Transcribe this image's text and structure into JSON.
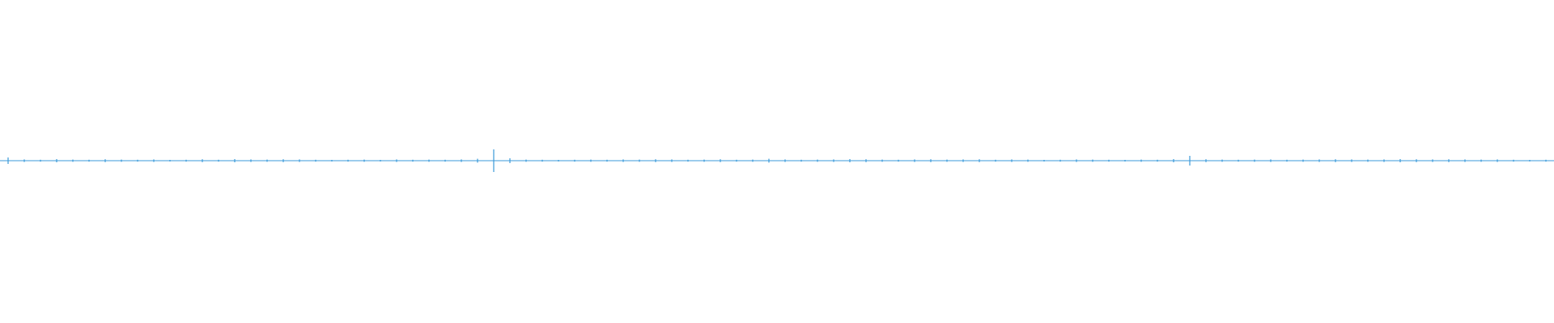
{
  "waveform": {
    "color": "#3a9ad9",
    "peaks": [
      0.02,
      0.008,
      0.006,
      0.01,
      0.007,
      0.006,
      0.009,
      0.007,
      0.006,
      0.008,
      0.005,
      0.006,
      0.009,
      0.006,
      0.01,
      0.008,
      0.007,
      0.009,
      0.008,
      0.006,
      0.005,
      0.006,
      0.007,
      0.005,
      0.008,
      0.006,
      0.007,
      0.006,
      0.008,
      0.012,
      0.07,
      0.015,
      0.007,
      0.006,
      0.005,
      0.006,
      0.007,
      0.006,
      0.008,
      0.007,
      0.009,
      0.008,
      0.006,
      0.007,
      0.009,
      0.006,
      0.007,
      0.012,
      0.008,
      0.006,
      0.007,
      0.008,
      0.01,
      0.009,
      0.007,
      0.006,
      0.008,
      0.009,
      0.007,
      0.008,
      0.009,
      0.006,
      0.008,
      0.007,
      0.005,
      0.006,
      0.008,
      0.007,
      0.006,
      0.005,
      0.007,
      0.006,
      0.01,
      0.03,
      0.009,
      0.007,
      0.006,
      0.007,
      0.008,
      0.006,
      0.007,
      0.008,
      0.009,
      0.008,
      0.007,
      0.008,
      0.01,
      0.009,
      0.008,
      0.009,
      0.008,
      0.007,
      0.008,
      0.006,
      0.005,
      0.006
    ]
  }
}
